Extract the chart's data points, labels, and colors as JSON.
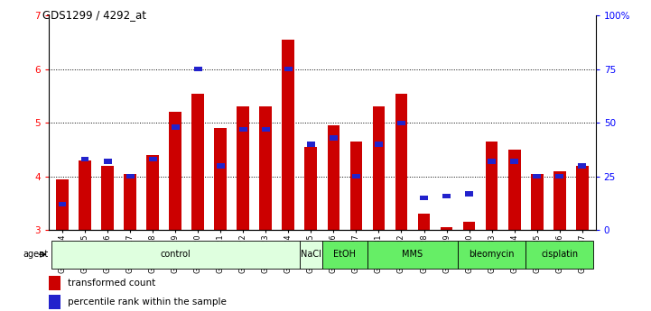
{
  "title": "GDS1299 / 4292_at",
  "samples": [
    "GSM40714",
    "GSM40715",
    "GSM40716",
    "GSM40717",
    "GSM40718",
    "GSM40719",
    "GSM40720",
    "GSM40721",
    "GSM40722",
    "GSM40723",
    "GSM40724",
    "GSM40725",
    "GSM40726",
    "GSM40727",
    "GSM40731",
    "GSM40732",
    "GSM40728",
    "GSM40729",
    "GSM40730",
    "GSM40733",
    "GSM40734",
    "GSM40735",
    "GSM40736",
    "GSM40737"
  ],
  "red_values": [
    3.95,
    4.3,
    4.2,
    4.05,
    4.4,
    5.2,
    5.55,
    4.9,
    5.3,
    5.3,
    6.55,
    4.55,
    4.95,
    4.65,
    5.3,
    5.55,
    3.3,
    3.05,
    3.15,
    4.65,
    4.5,
    4.05,
    4.1,
    4.2
  ],
  "blue_pct": [
    12,
    33,
    32,
    25,
    33,
    48,
    75,
    30,
    47,
    47,
    75,
    40,
    43,
    25,
    40,
    50,
    15,
    16,
    17,
    32,
    32,
    25,
    25,
    30
  ],
  "ylim_left": [
    3.0,
    7.0
  ],
  "ylim_right": [
    0,
    100
  ],
  "yticks_left": [
    3,
    4,
    5,
    6,
    7
  ],
  "yticks_right": [
    0,
    25,
    50,
    75,
    100
  ],
  "groups": [
    {
      "label": "control",
      "start": 0,
      "end": 11,
      "light": true
    },
    {
      "label": "NaCl",
      "start": 11,
      "end": 12,
      "light": true
    },
    {
      "label": "EtOH",
      "start": 12,
      "end": 14,
      "light": false
    },
    {
      "label": "MMS",
      "start": 14,
      "end": 18,
      "light": false
    },
    {
      "label": "bleomycin",
      "start": 18,
      "end": 21,
      "light": false
    },
    {
      "label": "cisplatin",
      "start": 21,
      "end": 24,
      "light": false
    }
  ],
  "bar_width": 0.55,
  "red_color": "#cc0000",
  "blue_color": "#2222cc",
  "bar_bottom": 3.0,
  "color_light": "#dfffdf",
  "color_dark": "#66ee66"
}
